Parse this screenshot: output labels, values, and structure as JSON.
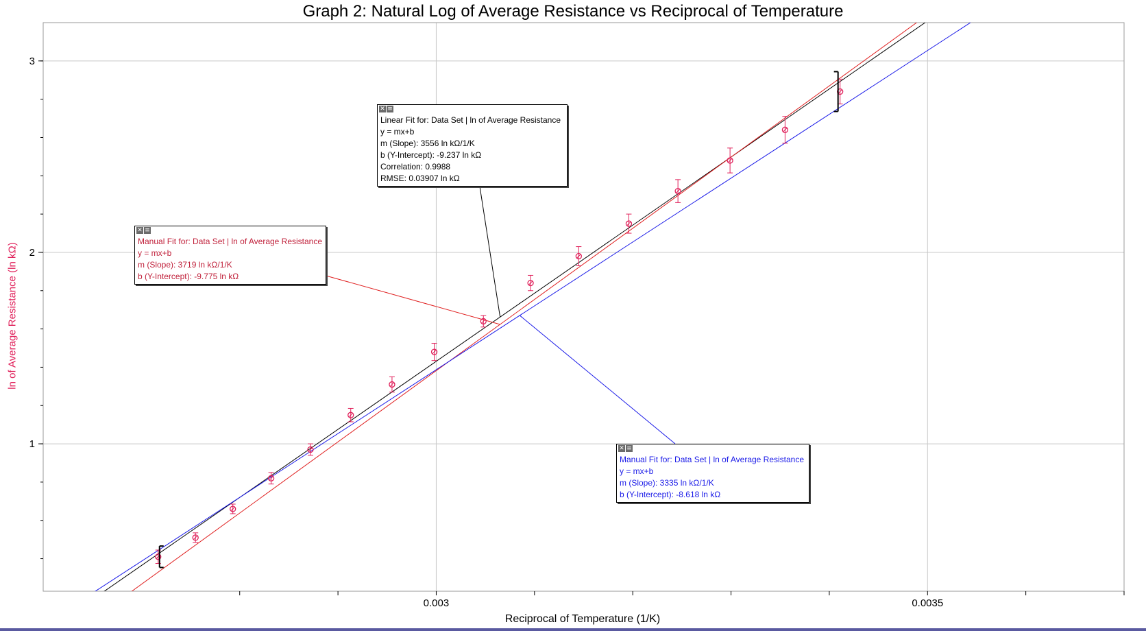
{
  "chart_data": {
    "type": "scatter",
    "title": "Graph 2: Natural Log of Average Resistance vs Reciprocal of Temperature",
    "xlabel": "Reciprocal of Temperature (1/K)",
    "ylabel": "ln of Average Resistance (ln kΩ)",
    "xlim": [
      0.0026,
      0.0037
    ],
    "ylim": [
      0.23,
      3.2
    ],
    "x_ticks": [
      0.003,
      0.0035
    ],
    "x_tick_labels": [
      "0.003",
      "0.0035"
    ],
    "y_ticks": [
      1,
      2,
      3
    ],
    "y_tick_labels": [
      "1",
      "2",
      "3"
    ],
    "grid": true,
    "series": [
      {
        "x": [
          0.002717,
          0.002755,
          0.002793,
          0.002832,
          0.002872,
          0.002913,
          0.002955,
          0.002998,
          0.003048,
          0.003096,
          0.003145,
          0.003196,
          0.003246,
          0.003299,
          0.003355,
          0.003411
        ],
        "y": [
          0.41,
          0.51,
          0.66,
          0.82,
          0.97,
          1.15,
          1.31,
          1.48,
          1.64,
          1.84,
          1.98,
          2.15,
          2.32,
          2.48,
          2.64,
          2.84
        ],
        "err": [
          0.035,
          0.025,
          0.025,
          0.03,
          0.03,
          0.035,
          0.04,
          0.045,
          0.03,
          0.04,
          0.05,
          0.05,
          0.06,
          0.065,
          0.07,
          0.065
        ],
        "color": "#e0205a"
      }
    ],
    "fits": [
      {
        "name": "linear",
        "slope": 3556,
        "intercept": -9.237,
        "color": "#000000",
        "lines": [
          "Linear Fit for: Data Set | ln of Average Resistance",
          "y = mx+b",
          "m (Slope): 3556 ln kΩ/1/K",
          "b (Y-Intercept): -9.237 ln kΩ",
          "Correlation: 0.9988",
          "RMSE: 0.03907 ln kΩ"
        ]
      },
      {
        "name": "manual-red",
        "slope": 3719,
        "intercept": -9.775,
        "color": "#e02020",
        "lines": [
          "Manual Fit for: Data Set | ln of Average Resistance",
          "y = mx+b",
          "m (Slope): 3719 ln kΩ/1/K",
          "b (Y-Intercept): -9.775 ln kΩ"
        ]
      },
      {
        "name": "manual-blue",
        "slope": 3335,
        "intercept": -8.618,
        "color": "#1a1ae8",
        "lines": [
          "Manual Fit for: Data Set | ln of Average Resistance",
          "y = mx+b",
          "m (Slope): 3335 ln kΩ/1/K",
          "b (Y-Intercept): -8.618 ln kΩ"
        ]
      }
    ],
    "legend": "none"
  },
  "colors": {
    "grid": "#c8c8c8",
    "data": "#e0205a",
    "range_bracket": "#000000"
  },
  "icons": [
    "close-icon",
    "menu-icon"
  ]
}
